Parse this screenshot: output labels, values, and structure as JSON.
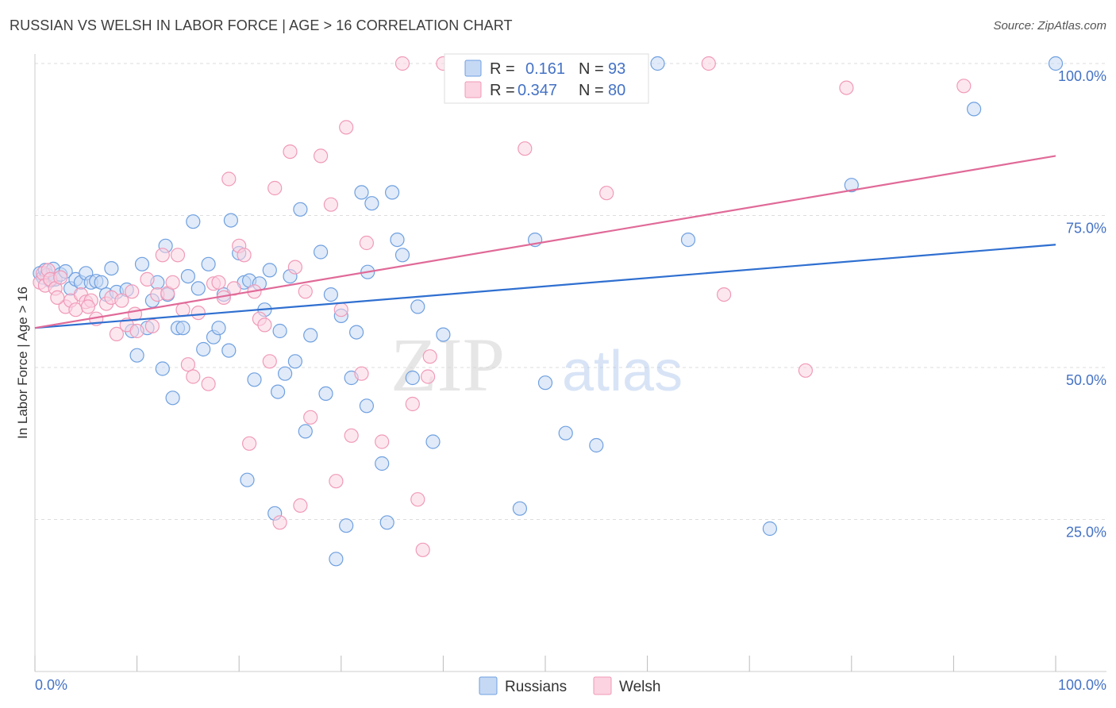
{
  "title": "RUSSIAN VS WELSH IN LABOR FORCE | AGE > 16 CORRELATION CHART",
  "source": "Source: ZipAtlas.com",
  "watermark": {
    "zip": "ZIP",
    "atlas": "atlas"
  },
  "stats_legend": [
    {
      "r_label": "R =",
      "r_value": "0.161",
      "n_label": "N =",
      "n_value": "93",
      "color": "#6fa0e0"
    },
    {
      "r_label": "R =",
      "r_value": "0.347",
      "n_label": "N =",
      "n_value": "80",
      "color": "#f09ab8"
    }
  ],
  "bottom_legend": [
    {
      "label": "Russians",
      "color": "#6fa0e0"
    },
    {
      "label": "Welsh",
      "color": "#f09ab8"
    }
  ],
  "colors": {
    "russians": "#6fa0e0",
    "welsh": "#f09ab8",
    "russians_line": "#2f6fd0",
    "welsh_line": "#e06a98",
    "tick_text": "#4472c4"
  },
  "chart_data": {
    "type": "scatter",
    "title": "RUSSIAN VS WELSH IN LABOR FORCE | AGE > 16 CORRELATION CHART",
    "xlabel": "",
    "ylabel": "In Labor Force | Age > 16",
    "xlim": [
      0,
      100
    ],
    "ylim": [
      0,
      105
    ],
    "x_tick_labels": [
      "0.0%",
      "100.0%"
    ],
    "y_ticks": [
      25,
      50,
      75,
      100
    ],
    "y_tick_labels": [
      "25.0%",
      "50.0%",
      "75.0%",
      "100.0%"
    ],
    "grid": true,
    "legend_position": "top-center",
    "series": [
      {
        "name": "Russians",
        "color": "#6fa0e0",
        "trend": {
          "x": [
            0,
            100
          ],
          "y": [
            56.5,
            70.2
          ]
        },
        "points": [
          [
            0.5,
            65.5
          ],
          [
            0.8,
            64.8
          ],
          [
            1.0,
            66.0
          ],
          [
            1.2,
            65.2
          ],
          [
            1.5,
            64.3
          ],
          [
            1.8,
            66.2
          ],
          [
            2.0,
            64.5
          ],
          [
            2.5,
            65.3
          ],
          [
            3.0,
            65.8
          ],
          [
            3.5,
            63.0
          ],
          [
            4.0,
            64.5
          ],
          [
            4.5,
            64.0
          ],
          [
            5.0,
            65.5
          ],
          [
            5.5,
            64.0
          ],
          [
            6.0,
            64.2
          ],
          [
            6.5,
            64.0
          ],
          [
            7.0,
            62.0
          ],
          [
            7.5,
            66.3
          ],
          [
            8.0,
            62.4
          ],
          [
            9.0,
            62.8
          ],
          [
            9.5,
            56.0
          ],
          [
            10.0,
            52.0
          ],
          [
            10.5,
            67.0
          ],
          [
            11.0,
            56.5
          ],
          [
            11.5,
            61.0
          ],
          [
            12.0,
            64.0
          ],
          [
            12.5,
            49.8
          ],
          [
            12.8,
            70.0
          ],
          [
            13.0,
            62.0
          ],
          [
            13.5,
            45.0
          ],
          [
            14.0,
            56.5
          ],
          [
            14.5,
            56.5
          ],
          [
            15.0,
            65.0
          ],
          [
            15.5,
            74.0
          ],
          [
            16.0,
            63.0
          ],
          [
            16.5,
            53.0
          ],
          [
            17.0,
            67.0
          ],
          [
            17.5,
            55.0
          ],
          [
            18.0,
            56.5
          ],
          [
            18.5,
            62.0
          ],
          [
            19.0,
            52.8
          ],
          [
            19.2,
            74.2
          ],
          [
            20.0,
            68.8
          ],
          [
            20.5,
            64.0
          ],
          [
            20.8,
            31.5
          ],
          [
            21.0,
            64.3
          ],
          [
            21.5,
            48.0
          ],
          [
            22.0,
            63.8
          ],
          [
            22.5,
            59.5
          ],
          [
            23.0,
            66.0
          ],
          [
            23.5,
            26.0
          ],
          [
            23.8,
            46.0
          ],
          [
            24.0,
            56.0
          ],
          [
            24.5,
            49.0
          ],
          [
            25.0,
            65.0
          ],
          [
            25.5,
            51.0
          ],
          [
            26.0,
            76.0
          ],
          [
            26.5,
            39.5
          ],
          [
            27.0,
            55.3
          ],
          [
            28.0,
            69.0
          ],
          [
            28.5,
            45.7
          ],
          [
            29.0,
            62.0
          ],
          [
            29.5,
            18.5
          ],
          [
            30.0,
            58.5
          ],
          [
            30.5,
            24.0
          ],
          [
            31.0,
            48.3
          ],
          [
            31.5,
            55.8
          ],
          [
            32.0,
            78.8
          ],
          [
            32.5,
            43.7
          ],
          [
            32.6,
            65.7
          ],
          [
            33.0,
            77.0
          ],
          [
            34.0,
            34.2
          ],
          [
            34.5,
            24.5
          ],
          [
            35.0,
            78.8
          ],
          [
            35.5,
            71.0
          ],
          [
            36.0,
            68.5
          ],
          [
            37.0,
            48.3
          ],
          [
            37.5,
            60.0
          ],
          [
            39.0,
            37.8
          ],
          [
            40.0,
            55.4
          ],
          [
            47.5,
            26.8
          ],
          [
            49.0,
            71.0
          ],
          [
            50.0,
            47.5
          ],
          [
            52.0,
            39.2
          ],
          [
            55.0,
            37.2
          ],
          [
            57.0,
            100.0
          ],
          [
            58.5,
            100.0
          ],
          [
            61.0,
            100.0
          ],
          [
            64.0,
            71.0
          ],
          [
            72.0,
            23.5
          ],
          [
            80.0,
            80.0
          ],
          [
            92.0,
            92.5
          ],
          [
            100.0,
            100.0
          ]
        ]
      },
      {
        "name": "Welsh",
        "color": "#f09ab8",
        "trend": {
          "x": [
            0,
            100
          ],
          "y": [
            56.5,
            84.8
          ]
        },
        "points": [
          [
            0.5,
            64.0
          ],
          [
            0.8,
            65.5
          ],
          [
            1.0,
            63.5
          ],
          [
            1.3,
            66.0
          ],
          [
            1.5,
            64.5
          ],
          [
            2.0,
            63.0
          ],
          [
            2.5,
            64.8
          ],
          [
            3.0,
            60.0
          ],
          [
            3.5,
            61.0
          ],
          [
            4.0,
            59.5
          ],
          [
            4.5,
            62.0
          ],
          [
            5.0,
            60.8
          ],
          [
            5.5,
            61.0
          ],
          [
            6.0,
            58.0
          ],
          [
            7.0,
            60.5
          ],
          [
            7.5,
            61.5
          ],
          [
            8.0,
            55.5
          ],
          [
            8.5,
            61.0
          ],
          [
            9.0,
            57.0
          ],
          [
            9.5,
            62.5
          ],
          [
            10.0,
            56.0
          ],
          [
            11.0,
            64.5
          ],
          [
            11.5,
            56.8
          ],
          [
            12.0,
            62.0
          ],
          [
            12.5,
            68.5
          ],
          [
            13.0,
            62.2
          ],
          [
            13.5,
            64.0
          ],
          [
            14.0,
            68.5
          ],
          [
            14.5,
            59.5
          ],
          [
            15.0,
            50.5
          ],
          [
            15.5,
            48.5
          ],
          [
            16.0,
            59.0
          ],
          [
            17.0,
            47.3
          ],
          [
            17.5,
            63.8
          ],
          [
            18.0,
            64.0
          ],
          [
            18.5,
            61.5
          ],
          [
            19.0,
            81.0
          ],
          [
            19.5,
            63.0
          ],
          [
            20.0,
            70.0
          ],
          [
            20.5,
            68.5
          ],
          [
            21.0,
            37.5
          ],
          [
            21.5,
            62.5
          ],
          [
            22.0,
            58.0
          ],
          [
            22.5,
            57.0
          ],
          [
            23.0,
            51.0
          ],
          [
            23.5,
            79.5
          ],
          [
            24.0,
            24.5
          ],
          [
            25.0,
            85.5
          ],
          [
            25.5,
            66.5
          ],
          [
            26.0,
            27.3
          ],
          [
            26.5,
            62.5
          ],
          [
            27.0,
            41.8
          ],
          [
            28.0,
            84.8
          ],
          [
            29.0,
            76.8
          ],
          [
            29.5,
            31.3
          ],
          [
            30.0,
            59.5
          ],
          [
            30.5,
            89.5
          ],
          [
            31.0,
            38.8
          ],
          [
            32.0,
            49.0
          ],
          [
            32.5,
            70.5
          ],
          [
            34.0,
            37.8
          ],
          [
            36.0,
            100.0
          ],
          [
            37.0,
            44.0
          ],
          [
            37.5,
            28.3
          ],
          [
            38.0,
            20.0
          ],
          [
            38.5,
            48.5
          ],
          [
            38.7,
            51.8
          ],
          [
            40.0,
            100.0
          ],
          [
            41.0,
            100.0
          ],
          [
            47.5,
            100.0
          ],
          [
            48.0,
            86.0
          ],
          [
            56.0,
            78.7
          ],
          [
            66.0,
            100.0
          ],
          [
            67.5,
            62.0
          ],
          [
            75.5,
            49.5
          ],
          [
            79.5,
            96.0
          ],
          [
            91.0,
            96.3
          ],
          [
            2.2,
            61.5
          ],
          [
            5.2,
            60.0
          ],
          [
            9.8,
            58.8
          ]
        ]
      }
    ]
  }
}
